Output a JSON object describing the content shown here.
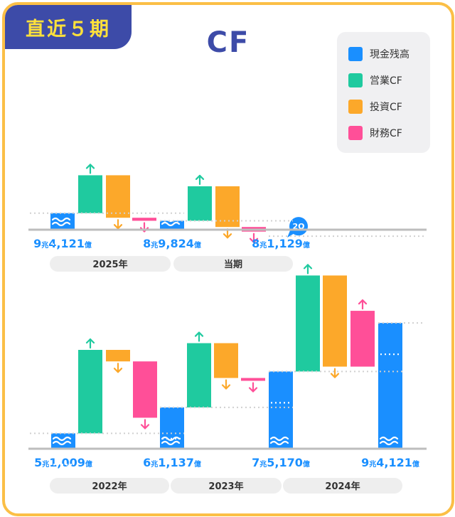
{
  "badge": "直近５期",
  "title": "CF",
  "legend": [
    {
      "label": "現金残高",
      "color": "#1a8fff"
    },
    {
      "label": "営業CF",
      "color": "#1fca9f"
    },
    {
      "label": "投資CF",
      "color": "#fca82a"
    },
    {
      "label": "財務CF",
      "color": "#ff4f98"
    }
  ],
  "colors": {
    "up_arrow": "#1fca9f",
    "down_arrow": "#fca82a",
    "fin_arrow": "#ff4f98",
    "axis": "#bdbdbd",
    "value_text": "#1a8fff",
    "pill": "#eeeeee"
  },
  "chart_data": [
    {
      "type": "waterfall",
      "unit_labels": {
        "cho": "兆",
        "oku": "億"
      },
      "periods": [
        "2025年",
        "当期"
      ],
      "steps": [
        {
          "kind": "balance",
          "value": 94121,
          "label_num1": "9",
          "label_num2": "4,121"
        },
        {
          "kind": "営業CF",
          "delta": 21300
        },
        {
          "kind": "投資CF",
          "delta": -23900
        },
        {
          "kind": "財務CF",
          "delta": -1700
        },
        {
          "kind": "balance",
          "value": 89824,
          "label_num1": "8",
          "label_num2": "9,824"
        },
        {
          "kind": "営業CF",
          "delta": 19400
        },
        {
          "kind": "投資CF",
          "delta": -22900
        },
        {
          "kind": "財務CF",
          "delta": -2600
        },
        {
          "kind": "balance",
          "value": 81129,
          "label_num1": "8",
          "label_num2": "1,129",
          "badge": "2Q"
        }
      ]
    },
    {
      "type": "waterfall",
      "unit_labels": {
        "cho": "兆",
        "oku": "億"
      },
      "periods": [
        "2022年",
        "2023年",
        "2024年"
      ],
      "steps": [
        {
          "kind": "balance",
          "value": 51009,
          "label_num1": "5",
          "label_num2": "1,009"
        },
        {
          "kind": "営業CF",
          "delta": 32600
        },
        {
          "kind": "投資CF",
          "delta": -4500
        },
        {
          "kind": "財務CF",
          "delta": -22000
        },
        {
          "kind": "balance",
          "value": 61137,
          "label_num1": "6",
          "label_num2": "1,137"
        },
        {
          "kind": "営業CF",
          "delta": 25100
        },
        {
          "kind": "投資CF",
          "delta": -13600
        },
        {
          "kind": "財務CF",
          "delta": -400
        },
        {
          "kind": "balance",
          "value": 75170,
          "label_num1": "7",
          "label_num2": "5,170"
        },
        {
          "kind": "営業CF",
          "delta": 37500
        },
        {
          "kind": "投資CF",
          "delta": -35600
        },
        {
          "kind": "財務CF",
          "delta": 21800
        },
        {
          "kind": "balance",
          "value": 94121,
          "label_num1": "9",
          "label_num2": "4,121"
        }
      ]
    }
  ]
}
